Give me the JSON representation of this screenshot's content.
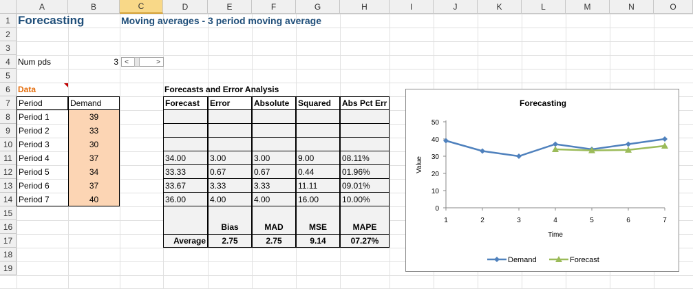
{
  "columns": [
    "A",
    "B",
    "C",
    "D",
    "E",
    "F",
    "G",
    "H",
    "I",
    "J",
    "K",
    "L",
    "M",
    "N",
    "O"
  ],
  "rows": [
    "1",
    "2",
    "3",
    "4",
    "5",
    "6",
    "7",
    "8",
    "9",
    "10",
    "11",
    "12",
    "13",
    "14",
    "15",
    "16",
    "17",
    "18",
    "19"
  ],
  "selected_column": "C",
  "title": "Forecasting",
  "subtitle": "Moving averages -  3 period moving average",
  "num_pds": {
    "label": "Num pds",
    "value": "3"
  },
  "scrollbar": {
    "left": "<",
    "right": ">"
  },
  "data_section": {
    "label": "Data",
    "headers": [
      "Period",
      "Demand"
    ],
    "rows": [
      [
        "Period 1",
        "39"
      ],
      [
        "Period 2",
        "33"
      ],
      [
        "Period 3",
        "30"
      ],
      [
        "Period 4",
        "37"
      ],
      [
        "Period 5",
        "34"
      ],
      [
        "Period 6",
        "37"
      ],
      [
        "Period 7",
        "40"
      ]
    ]
  },
  "forecast_section": {
    "label": "Forecasts and Error Analysis",
    "headers": [
      "Forecast",
      "Error",
      "Absolute",
      "Squared",
      "Abs Pct Err"
    ],
    "rows": [
      [
        "",
        "",
        "",
        "",
        ""
      ],
      [
        "",
        "",
        "",
        "",
        ""
      ],
      [
        "",
        "",
        "",
        "",
        ""
      ],
      [
        "34.00",
        "3.00",
        "3.00",
        "9.00",
        "08.11%"
      ],
      [
        "33.33",
        "0.67",
        "0.67",
        "0.44",
        "01.96%"
      ],
      [
        "33.67",
        "3.33",
        "3.33",
        "11.11",
        "09.01%"
      ],
      [
        "36.00",
        "4.00",
        "4.00",
        "16.00",
        "10.00%"
      ]
    ],
    "summary_headers": [
      "Bias",
      "MAD",
      "MSE",
      "MAPE"
    ],
    "summary_label": "Average",
    "summary_values": [
      "2.75",
      "2.75",
      "9.14",
      "07.27%"
    ]
  },
  "chart_data": {
    "type": "line",
    "title": "Forecasting",
    "xlabel": "Time",
    "ylabel": "Value",
    "x": [
      1,
      2,
      3,
      4,
      5,
      6,
      7
    ],
    "ylim": [
      0,
      50
    ],
    "yticks": [
      0,
      10,
      20,
      30,
      40,
      50
    ],
    "legend_position": "bottom",
    "series": [
      {
        "name": "Demand",
        "color": "#4f81bd",
        "marker": "diamond",
        "values": [
          39,
          33,
          30,
          37,
          34,
          37,
          40
        ]
      },
      {
        "name": "Forecast",
        "color": "#9bbb59",
        "marker": "triangle",
        "values": [
          null,
          null,
          null,
          34,
          33.33,
          33.67,
          36
        ]
      }
    ]
  }
}
